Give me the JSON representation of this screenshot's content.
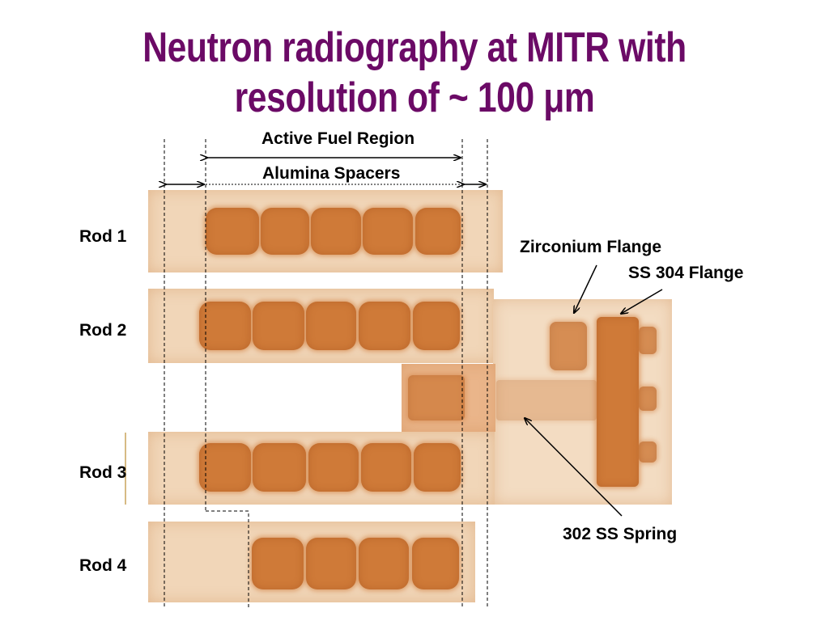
{
  "title": {
    "line1": "Neutron radiography at MITR with",
    "line2": "resolution of ~ 100 μm"
  },
  "dimension_labels": {
    "active_fuel": "Active Fuel Region",
    "spacers": "Alumina Spacers"
  },
  "rods": [
    {
      "label": "Rod 1"
    },
    {
      "label": "Rod 2"
    },
    {
      "label": "Rod 3"
    },
    {
      "label": "Rod 4"
    }
  ],
  "callouts": {
    "zirconium": "Zirconium Flange",
    "ss304": "SS 304 Flange",
    "spring": "302 SS Spring"
  },
  "colors": {
    "title": "#6b0a66",
    "fuel": "#cf7a38",
    "background_film": "#f1d6b8"
  }
}
